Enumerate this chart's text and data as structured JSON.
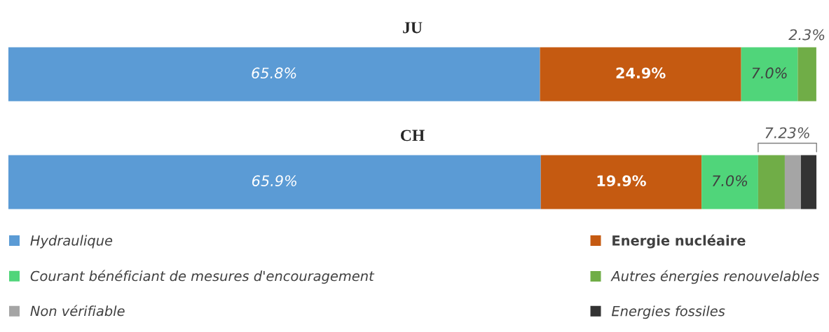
{
  "chart_data": {
    "type": "bar",
    "orientation": "horizontal",
    "stacked": true,
    "categories": [
      "JU",
      "CH"
    ],
    "series": [
      {
        "name": "Hydraulique",
        "color": "#5b9bd5",
        "values": [
          65.8,
          65.9
        ],
        "value_labels": [
          "65.8%",
          "65.9%"
        ]
      },
      {
        "name": "Energie nucléaire",
        "color": "#c55a11",
        "values": [
          24.9,
          19.9
        ],
        "value_labels": [
          "24.9%",
          "19.9%"
        ]
      },
      {
        "name": "Courant bénéficiant de mesures d'encouragement",
        "color": "#50d57a",
        "values": [
          7.0,
          7.0
        ],
        "value_labels": [
          "7.0%",
          "7.0%"
        ]
      },
      {
        "name": "Autres énergies renouvelables",
        "color": "#70ad47",
        "values": [
          2.3,
          3.3
        ],
        "value_labels": [
          "2.3%",
          null
        ]
      },
      {
        "name": "Non vérifiable",
        "color": "#a5a5a5",
        "values": [
          0,
          2.0
        ],
        "value_labels": [
          null,
          null
        ]
      },
      {
        "name": "Energies fossiles",
        "color": "#333333",
        "values": [
          0,
          1.93
        ],
        "value_labels": [
          null,
          null
        ]
      }
    ],
    "annotations": [
      "7.23%"
    ],
    "legend": "bottom"
  }
}
